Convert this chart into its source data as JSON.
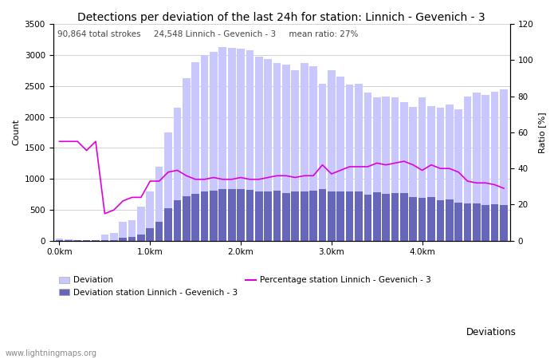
{
  "title": "Detections per deviation of the last 24h for station: Linnich - Gevenich - 3",
  "subtitle": "90,864 total strokes     24,548 Linnich - Gevenich - 3     mean ratio: 27%",
  "ylabel_left": "Count",
  "ylabel_right": "Ratio [%]",
  "watermark": "www.lightningmaps.org",
  "x_tick_labels": [
    "0.0km",
    "1.0km",
    "2.0km",
    "3.0km",
    "4.0km"
  ],
  "x_tick_positions": [
    0,
    10,
    20,
    30,
    40
  ],
  "ylim_left": [
    0,
    3500
  ],
  "ylim_right": [
    0,
    120
  ],
  "legend_items": [
    {
      "label": "Deviation",
      "color": "#c8c8ff",
      "type": "bar"
    },
    {
      "label": "Deviation station Linnich - Gevenich - 3",
      "color": "#6666bb",
      "type": "bar"
    },
    {
      "label": "Percentage station Linnich - Gevenich - 3",
      "color": "#dd00dd",
      "type": "line"
    }
  ],
  "legend_extra": "Deviations",
  "total_bars": 50,
  "deviation_bars": [
    30,
    20,
    15,
    10,
    10,
    100,
    130,
    300,
    330,
    550,
    800,
    1190,
    1750,
    2150,
    2620,
    2880,
    3000,
    3050,
    3130,
    3120,
    3100,
    3080,
    2980,
    2930,
    2870,
    2850,
    2760,
    2870,
    2820,
    2530,
    2760,
    2650,
    2520,
    2530,
    2390,
    2310,
    2330,
    2320,
    2240,
    2160,
    2310,
    2180,
    2150,
    2200,
    2120,
    2330,
    2390,
    2350,
    2410,
    2450
  ],
  "station_bars": [
    5,
    5,
    5,
    3,
    3,
    10,
    15,
    50,
    60,
    100,
    200,
    300,
    520,
    650,
    720,
    760,
    790,
    810,
    830,
    830,
    840,
    820,
    790,
    800,
    810,
    770,
    800,
    800,
    810,
    830,
    790,
    790,
    790,
    800,
    750,
    780,
    760,
    770,
    770,
    700,
    690,
    700,
    660,
    670,
    620,
    600,
    600,
    580,
    590,
    580
  ],
  "ratio_line": [
    55,
    55,
    55,
    50,
    55,
    15,
    17,
    22,
    24,
    24,
    33,
    33,
    38,
    39,
    36,
    34,
    34,
    35,
    34,
    34,
    35,
    34,
    34,
    35,
    36,
    36,
    35,
    36,
    36,
    42,
    37,
    39,
    41,
    41,
    41,
    43,
    42,
    43,
    44,
    42,
    39,
    42,
    40,
    40,
    38,
    33,
    32,
    32,
    31,
    29
  ],
  "bar_width": 0.85,
  "bg_color": "#ffffff",
  "grid_color": "#cccccc",
  "deviation_color": "#c8c8ff",
  "station_color": "#6666bb",
  "line_color": "#dd00dd",
  "title_fontsize": 10,
  "subtitle_fontsize": 7.5,
  "axis_fontsize": 8,
  "tick_fontsize": 7.5
}
